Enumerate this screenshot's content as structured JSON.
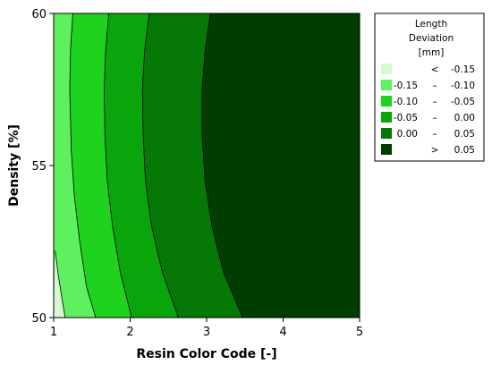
{
  "chart_data": {
    "type": "contour",
    "title": "",
    "xlabel": "Resin Color Code [-]",
    "ylabel": "Density [%]",
    "xlim": [
      1,
      5
    ],
    "ylim": [
      50,
      60
    ],
    "x_ticks": [
      1,
      2,
      3,
      4,
      5
    ],
    "y_ticks": [
      50,
      55,
      60
    ],
    "grid": false,
    "legend": {
      "placement": "top-right",
      "title_lines": [
        "Length",
        "Deviation",
        "[mm]"
      ],
      "entries": [
        {
          "low": "",
          "op": "<",
          "high": "-0.15",
          "color": "#d4fad4"
        },
        {
          "low": "-0.15",
          "op": "–",
          "high": "-0.10",
          "color": "#5ff05f"
        },
        {
          "low": "-0.10",
          "op": "–",
          "high": "-0.05",
          "color": "#1ed21e"
        },
        {
          "low": "-0.05",
          "op": "–",
          "high": "0.00",
          "color": "#0aa50a"
        },
        {
          "low": "0.00",
          "op": "–",
          "high": "0.05",
          "color": "#057805"
        },
        {
          "low": "",
          "op": ">",
          "high": "0.05",
          "color": "#003d00"
        }
      ]
    },
    "levels": [
      -0.15,
      -0.1,
      -0.05,
      0.0,
      0.05
    ],
    "contour_lines": [
      {
        "level": -0.15,
        "points": [
          [
            1.02,
            52.2
          ],
          [
            1.06,
            51.4
          ],
          [
            1.11,
            50.6
          ],
          [
            1.15,
            50.0
          ]
        ]
      },
      {
        "level": -0.1,
        "points": [
          [
            1.25,
            60
          ],
          [
            1.22,
            58.8
          ],
          [
            1.21,
            57.5
          ],
          [
            1.23,
            55.5
          ],
          [
            1.27,
            54.0
          ],
          [
            1.34,
            52.5
          ],
          [
            1.43,
            51.0
          ],
          [
            1.55,
            50.0
          ]
        ]
      },
      {
        "level": -0.05,
        "points": [
          [
            1.72,
            60
          ],
          [
            1.68,
            58.8
          ],
          [
            1.66,
            57.5
          ],
          [
            1.67,
            56.0
          ],
          [
            1.7,
            54.5
          ],
          [
            1.77,
            53.0
          ],
          [
            1.87,
            51.5
          ],
          [
            2.02,
            50.0
          ]
        ]
      },
      {
        "level": 0.0,
        "points": [
          [
            2.25,
            60
          ],
          [
            2.19,
            58.8
          ],
          [
            2.16,
            57.5
          ],
          [
            2.17,
            56.0
          ],
          [
            2.2,
            54.5
          ],
          [
            2.28,
            53.0
          ],
          [
            2.42,
            51.5
          ],
          [
            2.63,
            50.0
          ]
        ]
      },
      {
        "level": 0.05,
        "points": [
          [
            3.05,
            60
          ],
          [
            2.98,
            58.8
          ],
          [
            2.94,
            57.5
          ],
          [
            2.94,
            56.0
          ],
          [
            2.98,
            54.5
          ],
          [
            3.07,
            53.0
          ],
          [
            3.22,
            51.5
          ],
          [
            3.47,
            50.0
          ]
        ]
      }
    ]
  }
}
